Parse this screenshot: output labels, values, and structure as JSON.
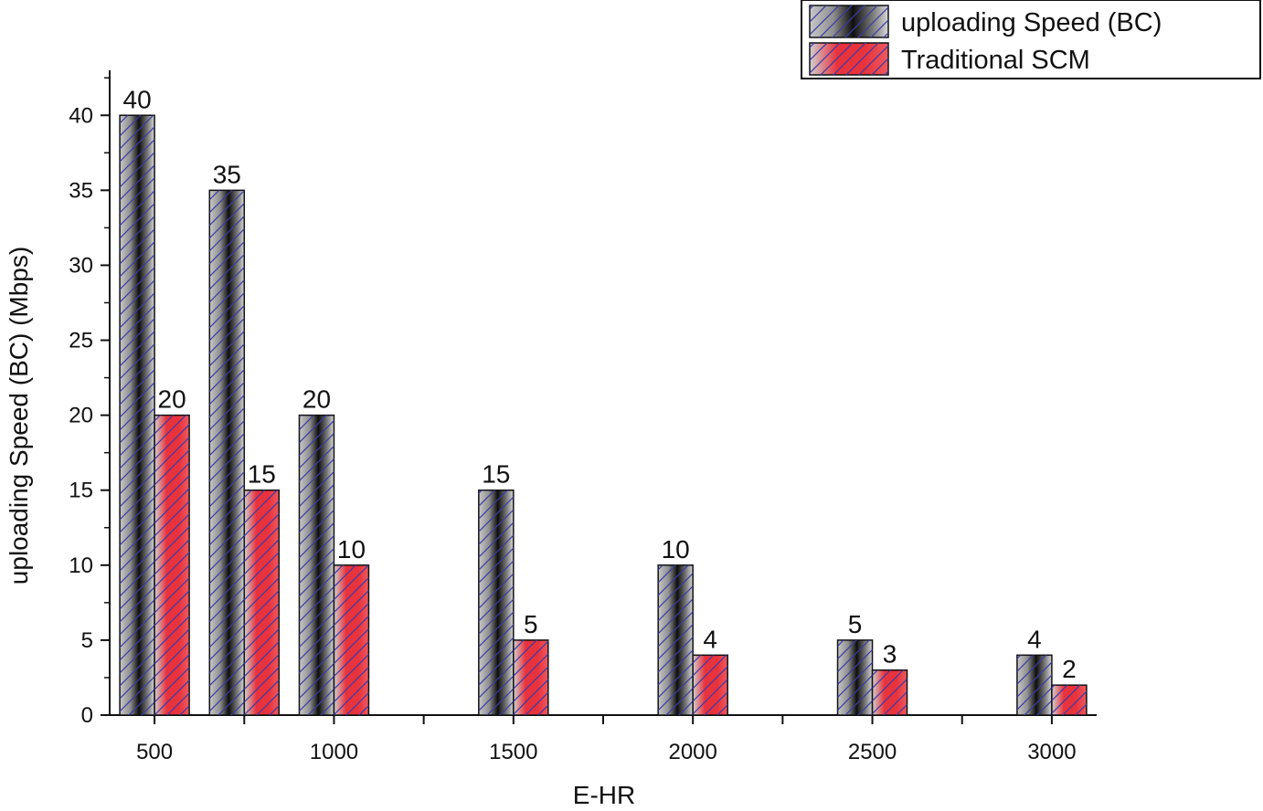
{
  "chart_data": {
    "type": "bar",
    "xlabel": "E-HR",
    "ylabel": "uploading Speed (BC) (Mbps)",
    "ylim": [
      0,
      43
    ],
    "yticks": [
      0,
      5,
      10,
      15,
      20,
      25,
      30,
      35,
      40
    ],
    "grid": false,
    "legend_position": "top-right",
    "categories": [
      {
        "x": 500,
        "label": "500"
      },
      {
        "x": 750,
        "label": ""
      },
      {
        "x": 1000,
        "label": "1000"
      },
      {
        "x": 1500,
        "label": "1500"
      },
      {
        "x": 2000,
        "label": "2000"
      },
      {
        "x": 2500,
        "label": "2500"
      },
      {
        "x": 3000,
        "label": "3000"
      }
    ],
    "xtick_positions": [
      500,
      750,
      1000,
      1250,
      1500,
      1750,
      2000,
      2250,
      2500,
      2750,
      3000
    ],
    "series": [
      {
        "name": "uploading Speed (BC)",
        "values": [
          40,
          35,
          20,
          15,
          10,
          5,
          4
        ],
        "labels": [
          "40",
          "35",
          "20",
          "15",
          "10",
          "5",
          "4"
        ],
        "color": "#2a2a2a",
        "hatch_color": "#3a3aa8"
      },
      {
        "name": "Traditional SCM",
        "values": [
          20,
          15,
          10,
          5,
          4,
          3,
          2
        ],
        "labels": [
          "20",
          "15",
          "10",
          "5",
          "4",
          "3",
          "2"
        ],
        "color": "#e8323c",
        "hatch_color": "#3a3aa8"
      }
    ]
  }
}
